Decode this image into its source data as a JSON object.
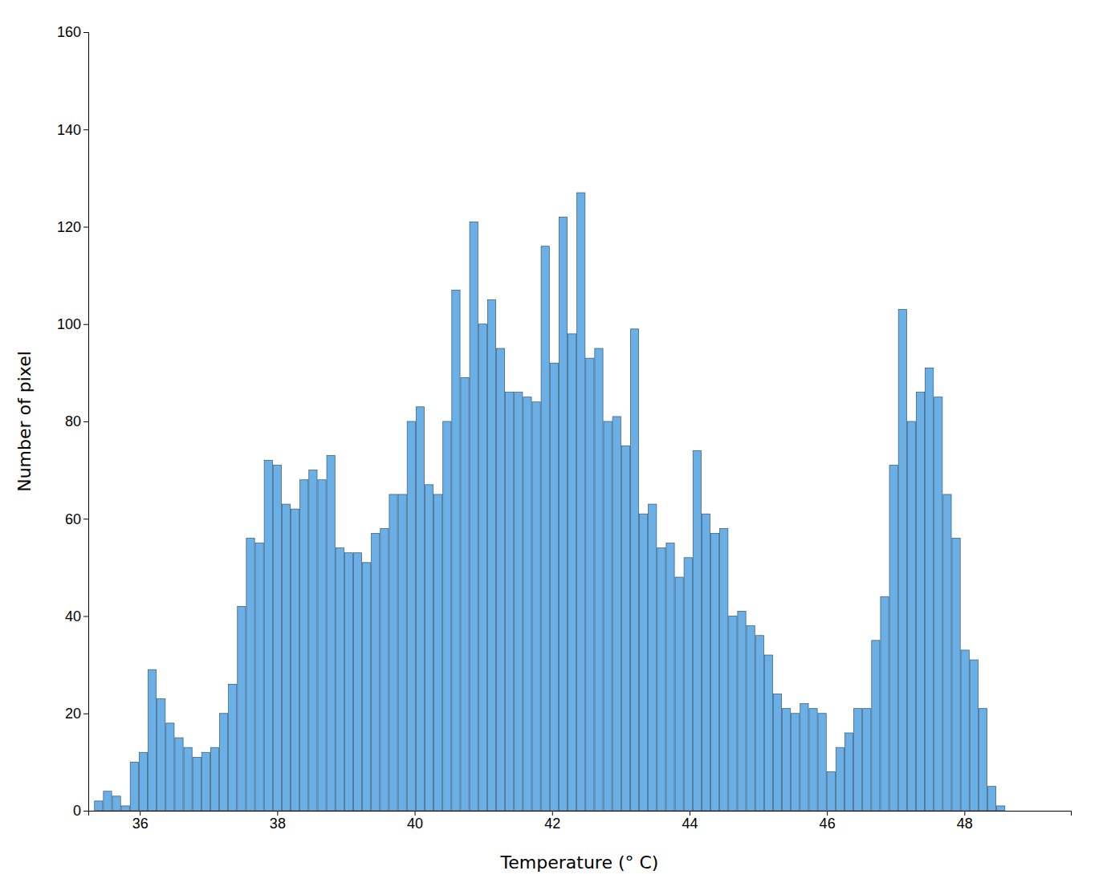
{
  "chart_data": {
    "type": "bar",
    "xlabel": "Temperature (° C)",
    "ylabel": "Number of pixel",
    "color": "#6aafe6",
    "xlim": [
      35.25,
      49.55
    ],
    "ylim": [
      0,
      160
    ],
    "xticks": [
      36,
      38,
      40,
      42,
      44,
      46,
      48
    ],
    "yticks": [
      0,
      20,
      40,
      60,
      80,
      100,
      120,
      140,
      160
    ],
    "x": [
      35.4,
      35.53,
      35.66,
      35.79,
      35.92,
      36.05,
      36.18,
      36.31,
      36.44,
      36.57,
      36.7,
      36.83,
      36.96,
      37.09,
      37.22,
      37.35,
      37.48,
      37.61,
      37.74,
      37.87,
      38.0,
      38.13,
      38.26,
      38.39,
      38.52,
      38.65,
      38.78,
      38.91,
      39.04,
      39.17,
      39.3,
      39.43,
      39.56,
      39.69,
      39.82,
      39.95,
      40.08,
      40.21,
      40.34,
      40.47,
      40.6,
      40.73,
      40.86,
      40.99,
      41.12,
      41.25,
      41.38,
      41.51,
      41.64,
      41.77,
      41.9,
      42.03,
      42.16,
      42.29,
      42.42,
      42.55,
      42.68,
      42.81,
      42.94,
      43.07,
      43.2,
      43.33,
      43.46,
      43.59,
      43.72,
      43.85,
      43.98,
      44.11,
      44.24,
      44.37,
      44.5,
      44.63,
      44.76,
      44.89,
      45.02,
      45.15,
      45.28,
      45.41,
      45.54,
      45.67,
      45.8,
      45.93,
      46.06,
      46.19,
      46.32,
      46.45,
      46.58,
      46.71,
      46.84,
      46.97,
      47.1,
      47.23,
      47.36,
      47.49,
      47.62,
      47.75,
      47.88,
      48.01,
      48.14,
      48.27,
      48.4,
      48.53
    ],
    "values": [
      2,
      4,
      3,
      1,
      10,
      12,
      29,
      23,
      18,
      15,
      13,
      11,
      12,
      13,
      20,
      26,
      42,
      56,
      55,
      72,
      71,
      63,
      62,
      68,
      70,
      68,
      73,
      54,
      53,
      53,
      51,
      57,
      58,
      65,
      65,
      80,
      83,
      67,
      65,
      80,
      107,
      89,
      121,
      100,
      105,
      95,
      86,
      86,
      85,
      84,
      116,
      92,
      122,
      98,
      127,
      93,
      95,
      80,
      81,
      75,
      99,
      61,
      63,
      54,
      55,
      48,
      52,
      74,
      61,
      57,
      58,
      40,
      41,
      38,
      36,
      32,
      24,
      21,
      20,
      22,
      21,
      20,
      8,
      13,
      16,
      21,
      21,
      35,
      44,
      71,
      103,
      80,
      86,
      91,
      85,
      65,
      56,
      33,
      31,
      21,
      5,
      1
    ]
  }
}
